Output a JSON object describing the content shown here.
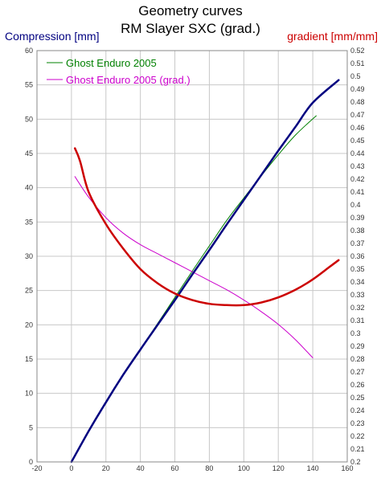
{
  "chart_data": {
    "type": "line",
    "title": "Geometry curves",
    "subtitle": "RM Slayer SXC (grad.)",
    "ylabel_left": "Compression [mm]",
    "ylabel_right": "gradient [mm/mm]",
    "xlim": [
      -20,
      160
    ],
    "ylim_left": [
      0,
      60
    ],
    "ylim_right": [
      0.2,
      0.52
    ],
    "x_ticks": [
      -20,
      0,
      20,
      40,
      60,
      80,
      100,
      120,
      140,
      160
    ],
    "y_left_ticks": [
      0,
      5,
      10,
      15,
      20,
      25,
      30,
      35,
      40,
      45,
      50,
      55,
      60
    ],
    "y_right_ticks": [
      "0.2",
      "0.21",
      "0.22",
      "0.23",
      "0.24",
      "0.25",
      "0.26",
      "0.27",
      "0.28",
      "0.29",
      "0.3",
      "0.31",
      "0.32",
      "0.33",
      "0.34",
      "0.35",
      "0.36",
      "0.37",
      "0.38",
      "0.39",
      "0.4",
      "0.41",
      "0.42",
      "0.43",
      "0.44",
      "0.45",
      "0.46",
      "0.47",
      "0.48",
      "0.49",
      "0.5",
      "0.51",
      "0.52"
    ],
    "grid": true,
    "legend_position": "top-left",
    "series": [
      {
        "name": "Ghost Enduro 2005",
        "axis": "left",
        "color": "#008000",
        "width": 1,
        "points": [
          [
            0,
            0
          ],
          [
            10,
            4.5
          ],
          [
            20,
            8.7
          ],
          [
            30,
            12.8
          ],
          [
            40,
            16.5
          ],
          [
            50,
            20.2
          ],
          [
            60,
            24
          ],
          [
            70,
            27.8
          ],
          [
            80,
            31.5
          ],
          [
            90,
            35.2
          ],
          [
            100,
            38.5
          ],
          [
            110,
            41.7
          ],
          [
            120,
            44.8
          ],
          [
            130,
            47.7
          ],
          [
            142,
            50.5
          ]
        ]
      },
      {
        "name": "Ghost Enduro 2005 (grad.)",
        "axis": "right",
        "color": "#cc00cc",
        "width": 1,
        "points": [
          [
            2,
            0.422
          ],
          [
            10,
            0.406
          ],
          [
            20,
            0.39
          ],
          [
            30,
            0.378
          ],
          [
            40,
            0.369
          ],
          [
            50,
            0.362
          ],
          [
            60,
            0.355
          ],
          [
            70,
            0.348
          ],
          [
            80,
            0.341
          ],
          [
            90,
            0.334
          ],
          [
            100,
            0.326
          ],
          [
            110,
            0.317
          ],
          [
            120,
            0.307
          ],
          [
            130,
            0.295
          ],
          [
            140,
            0.281
          ]
        ]
      },
      {
        "axis": "left",
        "color": "#000080",
        "width": 2.5,
        "points": [
          [
            0,
            0
          ],
          [
            10,
            4.5
          ],
          [
            20,
            8.7
          ],
          [
            30,
            12.7
          ],
          [
            40,
            16.4
          ],
          [
            50,
            20
          ],
          [
            60,
            23.6
          ],
          [
            70,
            27.3
          ],
          [
            80,
            30.9
          ],
          [
            90,
            34.6
          ],
          [
            100,
            38.2
          ],
          [
            110,
            41.8
          ],
          [
            120,
            45.4
          ],
          [
            130,
            48.9
          ],
          [
            140,
            52.4
          ],
          [
            155,
            55.7
          ]
        ]
      },
      {
        "axis": "right",
        "color": "#cc0000",
        "width": 2.5,
        "points": [
          [
            2,
            0.444
          ],
          [
            5,
            0.434
          ],
          [
            10,
            0.41
          ],
          [
            20,
            0.385
          ],
          [
            30,
            0.366
          ],
          [
            40,
            0.35
          ],
          [
            50,
            0.339
          ],
          [
            60,
            0.331
          ],
          [
            70,
            0.326
          ],
          [
            80,
            0.323
          ],
          [
            90,
            0.322
          ],
          [
            100,
            0.322
          ],
          [
            110,
            0.324
          ],
          [
            120,
            0.328
          ],
          [
            130,
            0.334
          ],
          [
            140,
            0.342
          ],
          [
            150,
            0.352
          ],
          [
            155,
            0.357
          ]
        ]
      }
    ]
  }
}
